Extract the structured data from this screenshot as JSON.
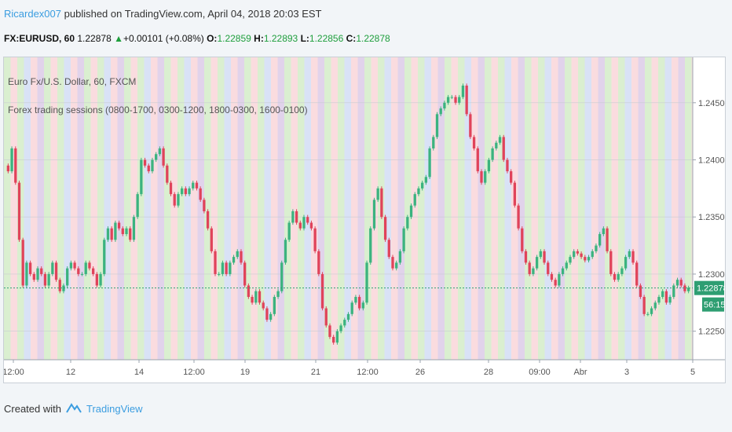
{
  "header": {
    "author": "Ricardex007",
    "published": "published on TradingView.com, April 04, 2018 20:03 EST"
  },
  "quote": {
    "symbol": "FX:EURUSD, 60",
    "last": "1.22878",
    "arrow": "▲",
    "change": "+0.00101 (+0.08%)",
    "o_label": "O:",
    "o": "1.22859",
    "h_label": "H:",
    "h": "1.22893",
    "l_label": "L:",
    "l": "1.22856",
    "c_label": "C:",
    "c": "1.22878"
  },
  "legend": {
    "line1": "Euro Fx/U.S. Dollar, 60, FXCM",
    "line2": "Forex trading sessions (0800-1700, 0300-1200, 1800-0300, 1600-0100)"
  },
  "footer": {
    "created": "Created with",
    "brand": "TradingView"
  },
  "colors": {
    "up": "#3bb37f",
    "down": "#e0435a",
    "price_line": "#2e9e72",
    "session_green": "#d4ecc8",
    "session_pink": "#f9d6d9",
    "session_blue": "#d2ddf4",
    "session_purple": "#dccbe8"
  },
  "chart_data": {
    "type": "candlestick",
    "title": "Euro Fx/U.S. Dollar, 60, FXCM",
    "indicator": "Forex trading sessions (0800-1700, 0300-1200, 1800-0300, 1600-0100)",
    "ylim": [
      1.2225,
      1.2487
    ],
    "y_ticks": [
      "1.22500",
      "1.23000",
      "1.23500",
      "1.24000",
      "1.24500"
    ],
    "x_ticks": [
      "12:00",
      "12",
      "14",
      "12:00",
      "19",
      "21",
      "12:00",
      "26",
      "28",
      "09:00",
      "Abr",
      "3",
      "5"
    ],
    "last_price": "1.22878",
    "countdown": "56:15",
    "close_series": [
      1.239,
      1.241,
      1.238,
      1.233,
      1.229,
      1.231,
      1.23,
      1.2295,
      1.2305,
      1.23,
      1.229,
      1.23,
      1.231,
      1.2295,
      1.2285,
      1.229,
      1.2305,
      1.231,
      1.2305,
      1.23,
      1.23,
      1.231,
      1.2305,
      1.23,
      1.229,
      1.23,
      1.233,
      1.234,
      1.233,
      1.2345,
      1.234,
      1.2335,
      1.234,
      1.233,
      1.235,
      1.237,
      1.24,
      1.2395,
      1.239,
      1.24,
      1.2405,
      1.241,
      1.2395,
      1.238,
      1.237,
      1.236,
      1.237,
      1.2375,
      1.237,
      1.2375,
      1.238,
      1.2375,
      1.2365,
      1.2355,
      1.234,
      1.232,
      1.23,
      1.23,
      1.231,
      1.23,
      1.231,
      1.2315,
      1.232,
      1.231,
      1.229,
      1.228,
      1.2275,
      1.2285,
      1.2275,
      1.227,
      1.226,
      1.2265,
      1.228,
      1.2285,
      1.231,
      1.233,
      1.2345,
      1.2355,
      1.2345,
      1.234,
      1.235,
      1.2345,
      1.234,
      1.232,
      1.23,
      1.227,
      1.2255,
      1.2245,
      1.224,
      1.225,
      1.2255,
      1.226,
      1.2265,
      1.2275,
      1.228,
      1.227,
      1.2275,
      1.231,
      1.234,
      1.2365,
      1.2375,
      1.235,
      1.233,
      1.2315,
      1.2305,
      1.231,
      1.232,
      1.234,
      1.235,
      1.236,
      1.237,
      1.2375,
      1.238,
      1.2385,
      1.241,
      1.242,
      1.244,
      1.2445,
      1.245,
      1.2455,
      1.2455,
      1.245,
      1.2455,
      1.2465,
      1.244,
      1.242,
      1.241,
      1.239,
      1.238,
      1.239,
      1.24,
      1.241,
      1.2415,
      1.242,
      1.24,
      1.239,
      1.238,
      1.236,
      1.234,
      1.232,
      1.231,
      1.23,
      1.2305,
      1.2315,
      1.232,
      1.231,
      1.23,
      1.2295,
      1.229,
      1.23,
      1.2305,
      1.231,
      1.2315,
      1.232,
      1.2318,
      1.2315,
      1.2312,
      1.2315,
      1.232,
      1.2325,
      1.2335,
      1.234,
      1.232,
      1.23,
      1.2295,
      1.23,
      1.2305,
      1.2315,
      1.232,
      1.231,
      1.229,
      1.228,
      1.2265,
      1.2265,
      1.227,
      1.2275,
      1.228,
      1.2285,
      1.2275,
      1.228,
      1.229,
      1.2295,
      1.229,
      1.2285,
      1.2288
    ]
  }
}
